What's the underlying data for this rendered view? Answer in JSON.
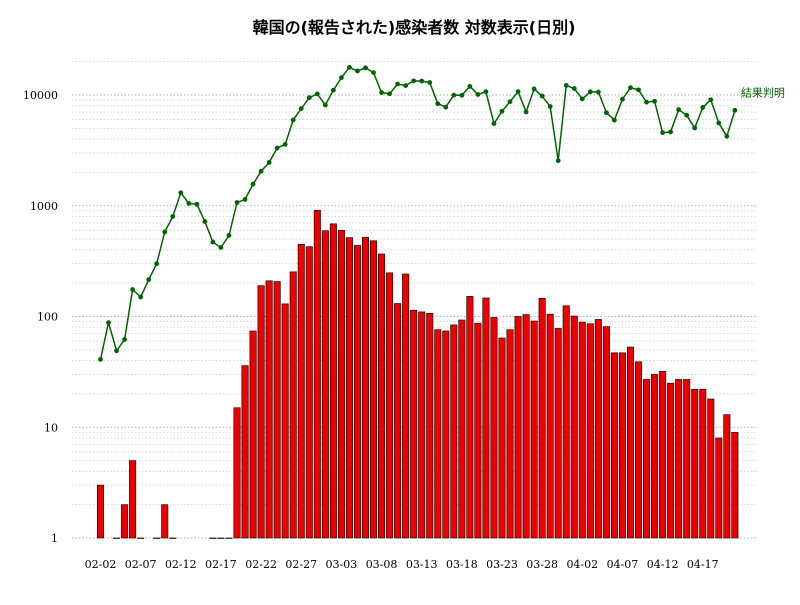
{
  "chart_data": {
    "type": "bar+line",
    "title": "韓国の(報告された)感染者数 対数表示(日別)",
    "yscale": "log",
    "ylim": [
      1,
      20000
    ],
    "yticks": [
      1,
      10,
      100,
      1000,
      10000
    ],
    "ytick_labels": [
      "1",
      "10",
      "100",
      "1000",
      "10000"
    ],
    "grid": "horizontal minor dotted",
    "x_start": "02-02",
    "xtick_labels": [
      "02-02",
      "02-07",
      "02-12",
      "02-17",
      "02-22",
      "02-27",
      "03-03",
      "03-08",
      "03-13",
      "03-18",
      "03-23",
      "03-28",
      "04-02",
      "04-07",
      "04-12",
      "04-17"
    ],
    "xtick_index": [
      0,
      5,
      10,
      15,
      20,
      25,
      30,
      35,
      40,
      45,
      50,
      55,
      60,
      65,
      70,
      75
    ],
    "bar_series": {
      "color": "#ee0000",
      "values": [
        3,
        0,
        1,
        2,
        5,
        1,
        0,
        1,
        2,
        1,
        0,
        0,
        0,
        0,
        1,
        1,
        1,
        15,
        36,
        74,
        190,
        210,
        207,
        130,
        253,
        449,
        427,
        909,
        595,
        686,
        600,
        516,
        438,
        518,
        483,
        367,
        248,
        131,
        242,
        114,
        110,
        107,
        76,
        74,
        84,
        93,
        152,
        87,
        147,
        98,
        64,
        76,
        100,
        104,
        91,
        146,
        105,
        78,
        125,
        101,
        89,
        86,
        94,
        81,
        47,
        47,
        53,
        39,
        27,
        30,
        32,
        25,
        27,
        27,
        22,
        22,
        18,
        8,
        13,
        9
      ]
    },
    "line_series": {
      "name": "結果判明",
      "color": "#006400",
      "values": [
        41,
        88,
        49,
        62,
        175,
        150,
        215,
        300,
        580,
        800,
        1310,
        1050,
        1030,
        720,
        470,
        420,
        540,
        1070,
        1140,
        1570,
        2050,
        2460,
        3320,
        3580,
        5960,
        7540,
        9460,
        10230,
        8120,
        11060,
        14330,
        17770,
        16470,
        17600,
        15930,
        10530,
        10260,
        12560,
        12160,
        13420,
        13360,
        12960,
        8340,
        7770,
        9970,
        9930,
        11950,
        10110,
        10710,
        5520,
        7130,
        8700,
        10730,
        7030,
        11340,
        9780,
        7870,
        2550,
        12200,
        11430,
        9210,
        10680,
        10630,
        6930,
        5930,
        9170,
        11640,
        11130,
        8620,
        8780,
        4570,
        4640,
        7380,
        6560,
        5040,
        7720,
        9060,
        5590,
        4240,
        7270
      ]
    }
  }
}
